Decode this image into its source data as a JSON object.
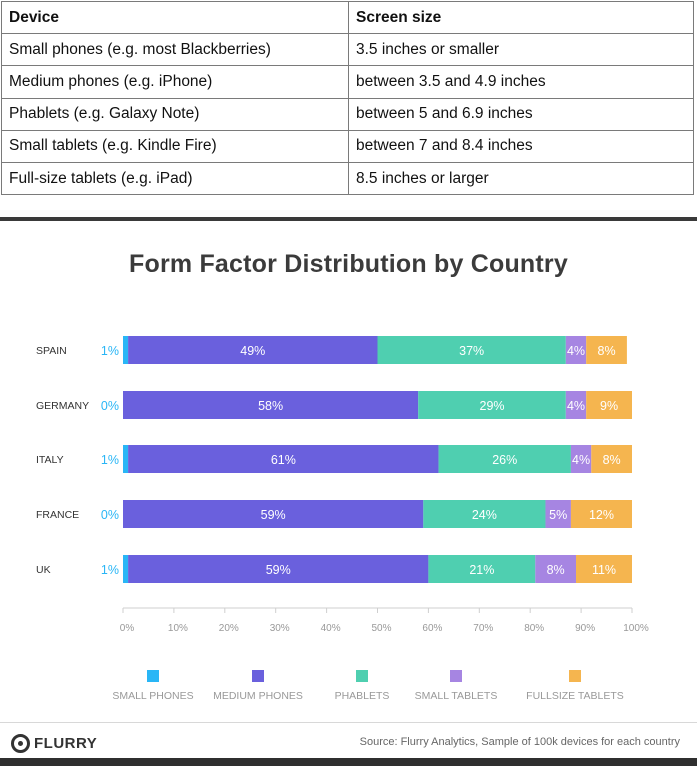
{
  "table": {
    "headers": [
      "Device",
      "Screen size"
    ],
    "rows": [
      [
        "Small phones (e.g. most Blackberries)",
        "3.5 inches or smaller"
      ],
      [
        "Medium phones (e.g. iPhone)",
        "between 3.5 and 4.9 inches"
      ],
      [
        "Phablets (e.g. Galaxy Note)",
        "between 5 and 6.9 inches"
      ],
      [
        "Small tablets (e.g. Kindle Fire)",
        "between 7 and 8.4 inches"
      ],
      [
        "Full-size tablets (e.g. iPad)",
        "8.5 inches or larger"
      ]
    ]
  },
  "chart_data": {
    "type": "bar",
    "orientation": "horizontal",
    "stacked": true,
    "title": "Form Factor Distribution by Country",
    "categories": [
      "SPAIN",
      "GERMANY",
      "ITALY",
      "FRANCE",
      "UK"
    ],
    "xlim": [
      0,
      100
    ],
    "xticks": [
      "0%",
      "10%",
      "20%",
      "30%",
      "40%",
      "50%",
      "60%",
      "70%",
      "80%",
      "90%",
      "100%"
    ],
    "legend_position": "bottom",
    "series": [
      {
        "name": "SMALL PHONES",
        "color": "#29b6f6",
        "values": [
          1,
          0,
          1,
          0,
          1
        ],
        "labels": [
          "1%",
          "0%",
          "1%",
          "0%",
          "1%"
        ]
      },
      {
        "name": "MEDIUM PHONES",
        "color": "#6a60dd",
        "values": [
          49,
          58,
          61,
          59,
          59
        ],
        "labels": [
          "49%",
          "58%",
          "61%",
          "59%",
          "59%"
        ]
      },
      {
        "name": "PHABLETS",
        "color": "#4fcfb0",
        "values": [
          37,
          29,
          26,
          24,
          21
        ],
        "labels": [
          "37%",
          "29%",
          "26%",
          "24%",
          "21%"
        ]
      },
      {
        "name": "SMALL TABLETS",
        "color": "#a685e2",
        "values": [
          4,
          4,
          4,
          5,
          8
        ],
        "labels": [
          "4%",
          "4%",
          "4%",
          "5%",
          "8%"
        ]
      },
      {
        "name": "FULLSIZE TABLETS",
        "color": "#f5b54f",
        "values": [
          8,
          9,
          8,
          12,
          11
        ],
        "labels": [
          "8%",
          "9%",
          "8%",
          "12%",
          "11%"
        ]
      }
    ]
  },
  "footer": {
    "logo": "FLURRY",
    "source": "Source: Flurry Analytics, Sample of 100k devices for each country"
  }
}
